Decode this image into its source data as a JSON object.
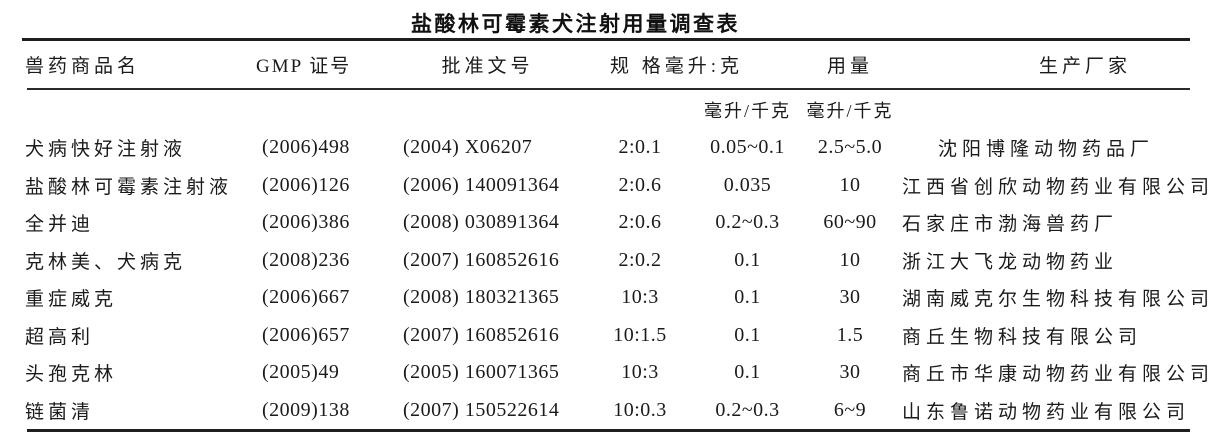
{
  "title": "盐酸林可霉素犬注射用量调查表",
  "table": {
    "headers": {
      "name": "兽药商品名",
      "gmp": "GMP 证号",
      "approval": "批准文号",
      "spec": "规 格毫升:克",
      "usage": "用量",
      "manufacturer": "生产厂家"
    },
    "subheaders": {
      "dose_unit": "毫升/千克",
      "usage_unit": "毫升/千克"
    },
    "rows": [
      {
        "name": "犬病快好注射液",
        "gmp": "(2006)498",
        "approval": "(2004) X06207",
        "spec": "2:0.1",
        "dose": "0.05~0.1",
        "usage": "2.5~5.0",
        "manufacturer": "沈阳博隆动物药品厂"
      },
      {
        "name": "盐酸林可霉素注射液",
        "gmp": "(2006)126",
        "approval": "(2006) 140091364",
        "spec": "2:0.6",
        "dose": "0.035",
        "usage": "10",
        "manufacturer": "江西省创欣动物药业有限公司"
      },
      {
        "name": "全并迪",
        "gmp": "(2006)386",
        "approval": "(2008) 030891364",
        "spec": "2:0.6",
        "dose": "0.2~0.3",
        "usage": "60~90",
        "manufacturer": "石家庄市渤海兽药厂"
      },
      {
        "name": "克林美、犬病克",
        "gmp": "(2008)236",
        "approval": "(2007) 160852616",
        "spec": "2:0.2",
        "dose": "0.1",
        "usage": "10",
        "manufacturer": "浙江大飞龙动物药业"
      },
      {
        "name": "重症威克",
        "gmp": "(2006)667",
        "approval": "(2008) 180321365",
        "spec": "10:3",
        "dose": "0.1",
        "usage": "30",
        "manufacturer": "湖南威克尔生物科技有限公司"
      },
      {
        "name": "超高利",
        "gmp": "(2006)657",
        "approval": "(2007) 160852616",
        "spec": "10:1.5",
        "dose": "0.1",
        "usage": "1.5",
        "manufacturer": "商丘生物科技有限公司"
      },
      {
        "name": "头孢克林",
        "gmp": "(2005)49",
        "approval": "(2005) 160071365",
        "spec": "10:3",
        "dose": "0.1",
        "usage": "30",
        "manufacturer": "商丘市华康动物药业有限公司"
      },
      {
        "name": "链菌清",
        "gmp": "(2009)138",
        "approval": "(2007) 150522614",
        "spec": "10:0.3",
        "dose": "0.2~0.3",
        "usage": "6~9",
        "manufacturer": "山东鲁诺动物药业有限公司"
      }
    ]
  },
  "colors": {
    "background": "#ffffff",
    "text": "#1b1b1b",
    "rule": "#1f1f1f"
  }
}
